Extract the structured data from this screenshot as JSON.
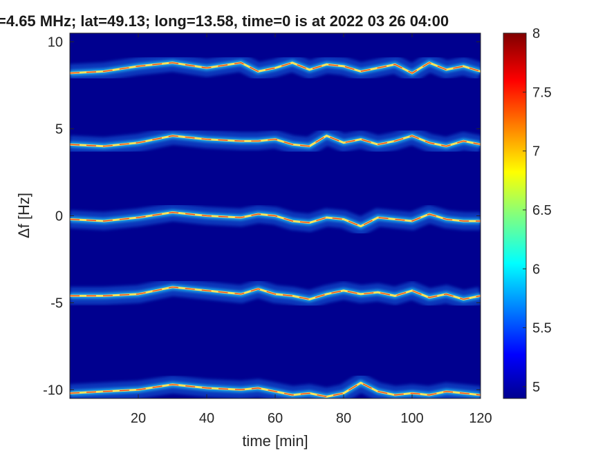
{
  "chart_data": {
    "type": "heatmap",
    "title": "=4.65 MHz;  lat=49.13; long=13.58, time=0 is at 2022 03 26 04:00",
    "xlabel": "time [min]",
    "ylabel": "Δf [Hz]",
    "xlim": [
      0,
      120
    ],
    "ylim": [
      -10.5,
      10.5
    ],
    "xticks": [
      "20",
      "40",
      "60",
      "80",
      "100",
      "120"
    ],
    "yticks": [
      "10",
      "5",
      "0",
      "-5",
      "-10"
    ],
    "colorbar": {
      "range": [
        4.9,
        8
      ],
      "ticks": [
        "8",
        "7.5",
        "7",
        "6.5",
        "6",
        "5.5",
        "5"
      ],
      "colormap": "jet"
    },
    "background_color": "#00008f",
    "traces": [
      {
        "name": "",
        "points": [
          [
            0,
            8.2
          ],
          [
            10,
            8.3
          ],
          [
            20,
            8.6
          ],
          [
            30,
            8.8
          ],
          [
            40,
            8.5
          ],
          [
            50,
            8.8
          ],
          [
            55,
            8.3
          ],
          [
            60,
            8.5
          ],
          [
            65,
            8.8
          ],
          [
            70,
            8.4
          ],
          [
            75,
            8.7
          ],
          [
            80,
            8.6
          ],
          [
            85,
            8.3
          ],
          [
            90,
            8.5
          ],
          [
            95,
            8.7
          ],
          [
            100,
            8.2
          ],
          [
            105,
            8.8
          ],
          [
            110,
            8.4
          ],
          [
            115,
            8.6
          ],
          [
            120,
            8.3
          ]
        ]
      },
      {
        "name": "",
        "points": [
          [
            0,
            4.1
          ],
          [
            10,
            4.0
          ],
          [
            20,
            4.2
          ],
          [
            30,
            4.6
          ],
          [
            40,
            4.4
          ],
          [
            50,
            4.3
          ],
          [
            55,
            4.3
          ],
          [
            60,
            4.4
          ],
          [
            65,
            4.1
          ],
          [
            70,
            4.0
          ],
          [
            75,
            4.6
          ],
          [
            80,
            4.2
          ],
          [
            85,
            4.4
          ],
          [
            90,
            4.1
          ],
          [
            95,
            4.3
          ],
          [
            100,
            4.6
          ],
          [
            105,
            4.2
          ],
          [
            110,
            4.0
          ],
          [
            115,
            4.3
          ],
          [
            120,
            4.1
          ]
        ]
      },
      {
        "name": "",
        "points": [
          [
            0,
            -0.2
          ],
          [
            10,
            -0.3
          ],
          [
            20,
            -0.1
          ],
          [
            30,
            0.2
          ],
          [
            40,
            0.0
          ],
          [
            50,
            -0.1
          ],
          [
            55,
            0.1
          ],
          [
            60,
            0.0
          ],
          [
            65,
            -0.3
          ],
          [
            70,
            -0.4
          ],
          [
            75,
            -0.1
          ],
          [
            80,
            -0.2
          ],
          [
            85,
            -0.6
          ],
          [
            90,
            -0.1
          ],
          [
            95,
            -0.2
          ],
          [
            100,
            -0.3
          ],
          [
            105,
            0.1
          ],
          [
            110,
            -0.2
          ],
          [
            115,
            -0.3
          ],
          [
            120,
            -0.3
          ]
        ]
      },
      {
        "name": "",
        "points": [
          [
            0,
            -4.6
          ],
          [
            10,
            -4.6
          ],
          [
            20,
            -4.5
          ],
          [
            30,
            -4.1
          ],
          [
            40,
            -4.3
          ],
          [
            50,
            -4.5
          ],
          [
            55,
            -4.2
          ],
          [
            60,
            -4.5
          ],
          [
            65,
            -4.6
          ],
          [
            70,
            -4.8
          ],
          [
            75,
            -4.5
          ],
          [
            80,
            -4.3
          ],
          [
            85,
            -4.5
          ],
          [
            90,
            -4.4
          ],
          [
            95,
            -4.6
          ],
          [
            100,
            -4.3
          ],
          [
            105,
            -4.7
          ],
          [
            110,
            -4.5
          ],
          [
            115,
            -4.8
          ],
          [
            120,
            -4.6
          ]
        ]
      },
      {
        "name": "",
        "points": [
          [
            0,
            -10.2
          ],
          [
            10,
            -10.1
          ],
          [
            20,
            -10.0
          ],
          [
            30,
            -9.7
          ],
          [
            40,
            -9.9
          ],
          [
            50,
            -10.0
          ],
          [
            55,
            -9.9
          ],
          [
            60,
            -10.1
          ],
          [
            65,
            -10.3
          ],
          [
            70,
            -10.2
          ],
          [
            75,
            -10.4
          ],
          [
            80,
            -10.2
          ],
          [
            85,
            -9.6
          ],
          [
            90,
            -10.1
          ],
          [
            95,
            -10.3
          ],
          [
            100,
            -10.2
          ],
          [
            105,
            -10.3
          ],
          [
            110,
            -10.1
          ],
          [
            115,
            -10.2
          ],
          [
            120,
            -10.3
          ]
        ]
      }
    ]
  }
}
